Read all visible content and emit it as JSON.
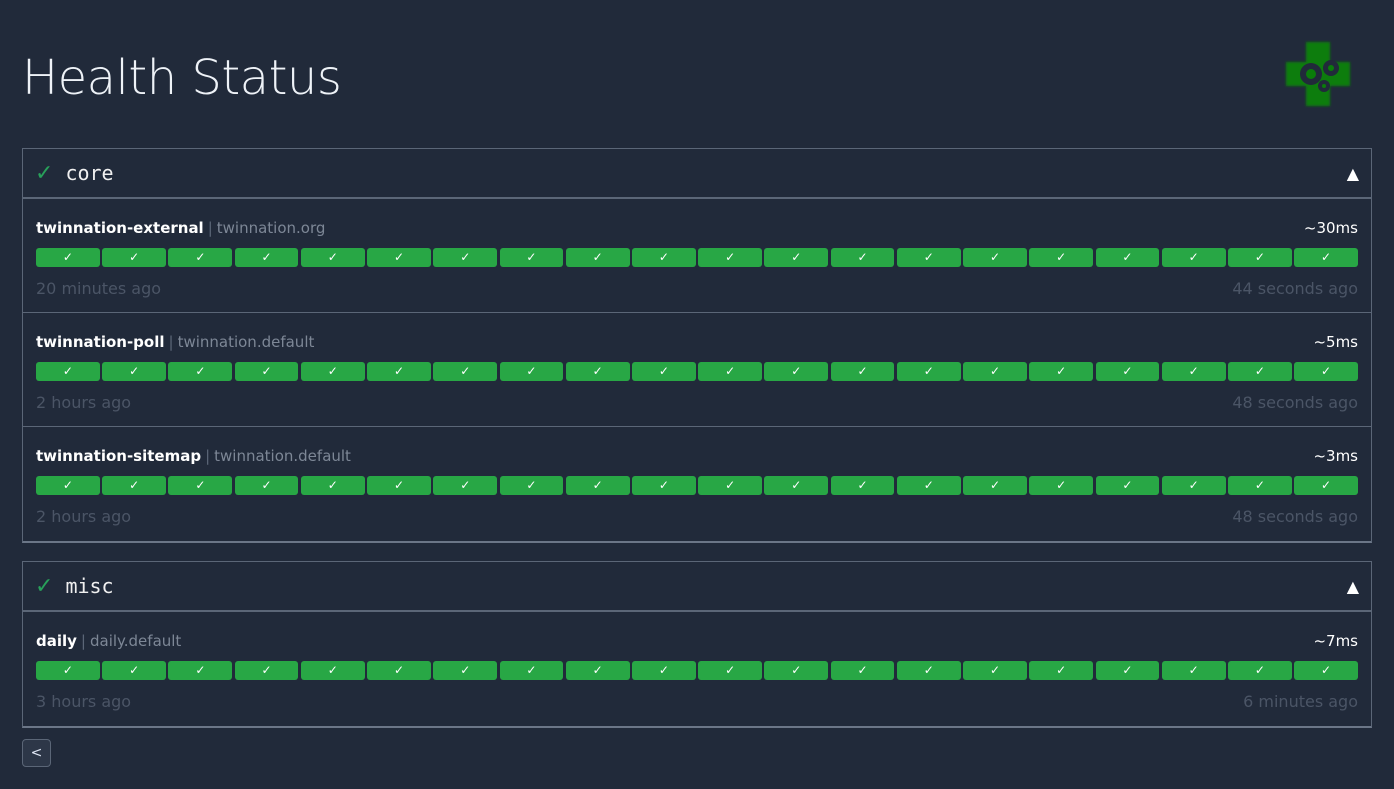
{
  "header": {
    "title": "Health Status",
    "logo": "health-gears-logo"
  },
  "colors": {
    "success": "#28a745",
    "background": "#212a3a",
    "border": "#5b6677"
  },
  "groups": [
    {
      "name": "core",
      "status_icon": "✓",
      "collapse_icon": "▲",
      "endpoints": [
        {
          "name": "twinnation-external",
          "group": "twinnation.org",
          "duration": "~30ms",
          "oldest": "20 minutes ago",
          "newest": "44 seconds ago",
          "results": [
            true,
            true,
            true,
            true,
            true,
            true,
            true,
            true,
            true,
            true,
            true,
            true,
            true,
            true,
            true,
            true,
            true,
            true,
            true,
            true
          ]
        },
        {
          "name": "twinnation-poll",
          "group": "twinnation.default",
          "duration": "~5ms",
          "oldest": "2 hours ago",
          "newest": "48 seconds ago",
          "results": [
            true,
            true,
            true,
            true,
            true,
            true,
            true,
            true,
            true,
            true,
            true,
            true,
            true,
            true,
            true,
            true,
            true,
            true,
            true,
            true
          ]
        },
        {
          "name": "twinnation-sitemap",
          "group": "twinnation.default",
          "duration": "~3ms",
          "oldest": "2 hours ago",
          "newest": "48 seconds ago",
          "results": [
            true,
            true,
            true,
            true,
            true,
            true,
            true,
            true,
            true,
            true,
            true,
            true,
            true,
            true,
            true,
            true,
            true,
            true,
            true,
            true
          ]
        }
      ]
    },
    {
      "name": "misc",
      "status_icon": "✓",
      "collapse_icon": "▲",
      "endpoints": [
        {
          "name": "daily",
          "group": "daily.default",
          "duration": "~7ms",
          "oldest": "3 hours ago",
          "newest": "6 minutes ago",
          "results": [
            true,
            true,
            true,
            true,
            true,
            true,
            true,
            true,
            true,
            true,
            true,
            true,
            true,
            true,
            true,
            true,
            true,
            true,
            true,
            true
          ]
        }
      ]
    }
  ],
  "result_glyph": "✓",
  "pagination": {
    "prev_label": "<"
  }
}
